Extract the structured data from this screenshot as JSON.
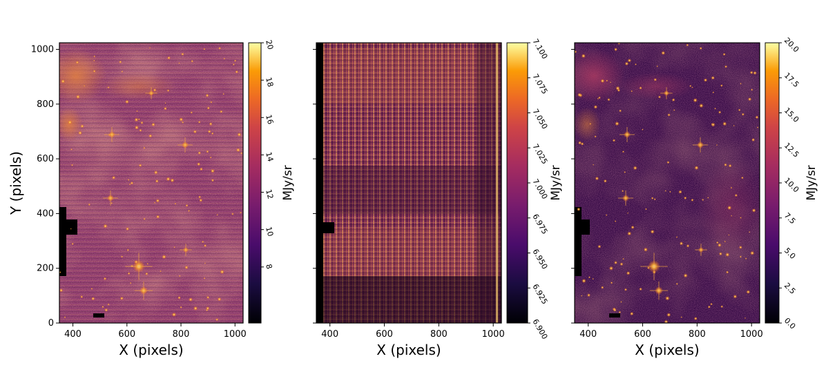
{
  "chart_data": [
    {
      "type": "heatmap",
      "panel": "left",
      "description_title": "",
      "xlabel": "X (pixels)",
      "ylabel": "Y (pixels)",
      "xlim": [
        350,
        1030
      ],
      "ylim": [
        0,
        1024
      ],
      "xticks": [
        400,
        600,
        800,
        1000
      ],
      "yticks": [
        0,
        200,
        400,
        600,
        800,
        1000
      ],
      "colormap": "inferno",
      "colorbar": {
        "label": "MJy/sr",
        "range": [
          5,
          20
        ],
        "ticks": [
          {
            "value": 8,
            "label": "8"
          },
          {
            "value": 10,
            "label": "10"
          },
          {
            "value": 12,
            "label": "12"
          },
          {
            "value": 14,
            "label": "14"
          },
          {
            "value": 16,
            "label": "16"
          },
          {
            "value": 18,
            "label": "18"
          },
          {
            "value": 20,
            "label": "20"
          }
        ]
      }
    },
    {
      "type": "heatmap",
      "panel": "middle",
      "xlabel": "X (pixels)",
      "ylabel": "",
      "xlim": [
        350,
        1030
      ],
      "ylim": [
        0,
        1024
      ],
      "xticks": [
        400,
        600,
        800,
        1000
      ],
      "yticks": [
        0,
        200,
        400,
        600,
        800,
        1000
      ],
      "colormap": "inferno",
      "colorbar": {
        "label": "MJy/sr",
        "range": [
          6.9,
          7.1
        ],
        "ticks": [
          {
            "value": 6.9,
            "label": "6.900"
          },
          {
            "value": 6.925,
            "label": "6.925"
          },
          {
            "value": 6.95,
            "label": "6.950"
          },
          {
            "value": 6.975,
            "label": "6.975"
          },
          {
            "value": 7.0,
            "label": "7.000"
          },
          {
            "value": 7.025,
            "label": "7.025"
          },
          {
            "value": 7.05,
            "label": "7.050"
          },
          {
            "value": 7.075,
            "label": "7.075"
          },
          {
            "value": 7.1,
            "label": "7.100"
          }
        ]
      }
    },
    {
      "type": "heatmap",
      "panel": "right",
      "xlabel": "X (pixels)",
      "ylabel": "",
      "xlim": [
        350,
        1030
      ],
      "ylim": [
        0,
        1024
      ],
      "xticks": [
        400,
        600,
        800,
        1000
      ],
      "yticks": [
        0,
        200,
        400,
        600,
        800,
        1000
      ],
      "colormap": "inferno",
      "colorbar": {
        "label": "MJy/sr",
        "range": [
          0,
          20
        ],
        "ticks": [
          {
            "value": 0,
            "label": "0.0"
          },
          {
            "value": 2.5,
            "label": "2.5"
          },
          {
            "value": 5,
            "label": "5.0"
          },
          {
            "value": 7.5,
            "label": "7.5"
          },
          {
            "value": 10,
            "label": "10.0"
          },
          {
            "value": 12.5,
            "label": "12.5"
          },
          {
            "value": 15,
            "label": "15.0"
          },
          {
            "value": 17.5,
            "label": "17.5"
          },
          {
            "value": 20,
            "label": "20.0"
          }
        ]
      }
    }
  ]
}
